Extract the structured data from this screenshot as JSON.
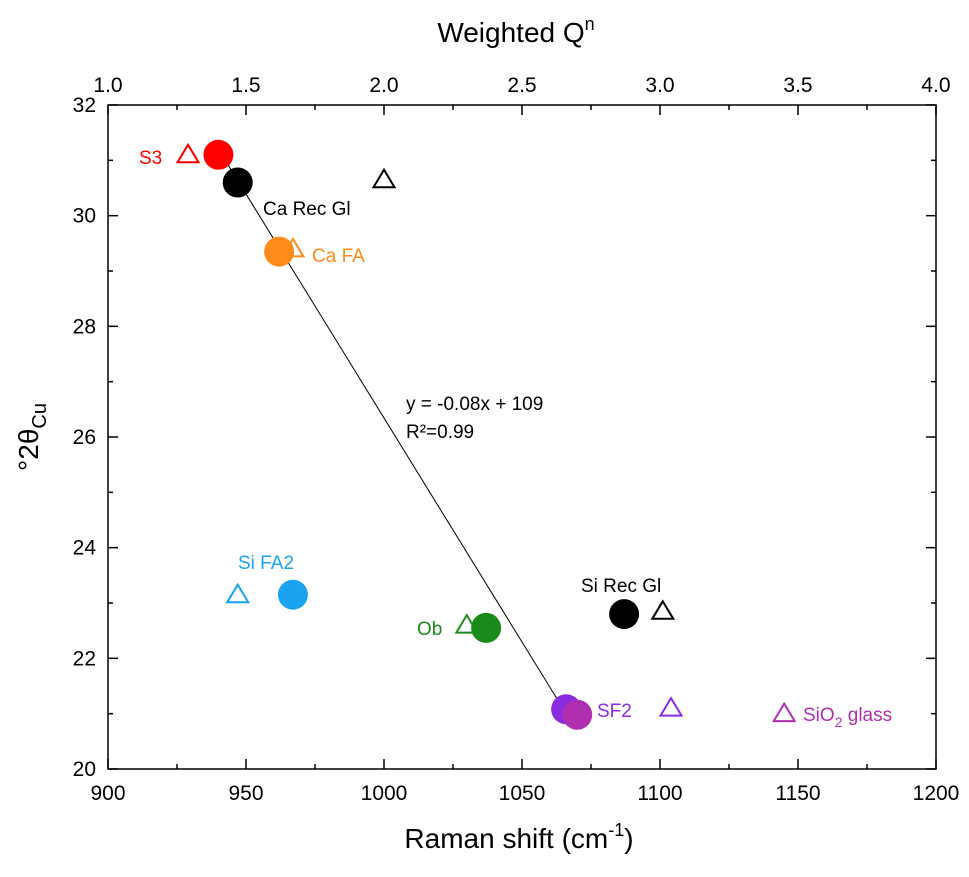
{
  "chart_data": {
    "type": "scatter",
    "xlabel": "Raman shift (cm",
    "xlabel_sup": "-1",
    "xlabel_end": ")",
    "ylabel": "°2θ",
    "ylabel_sub": "Cu",
    "x2label": "Weighted Q",
    "x2label_sup": "n",
    "xlim": [
      900,
      1200
    ],
    "ylim": [
      20,
      32
    ],
    "x2lim": [
      1.0,
      4.0
    ],
    "xticks": [
      "900",
      "950",
      "1000",
      "1050",
      "1100",
      "1150",
      "1200"
    ],
    "yticks": [
      "20",
      "22",
      "24",
      "26",
      "28",
      "30",
      "32"
    ],
    "x2ticks": [
      "1.0",
      "1.5",
      "2.0",
      "2.5",
      "3.0",
      "3.5",
      "4.0"
    ],
    "grid": false,
    "series": [
      {
        "marker": "circle",
        "points": [
          {
            "x": 940,
            "y": 31.1,
            "color": "#ff0000"
          },
          {
            "x": 947,
            "y": 30.6,
            "color": "#000000"
          },
          {
            "x": 962,
            "y": 29.35,
            "color": "#ff8c1a"
          },
          {
            "x": 967,
            "y": 23.15,
            "color": "#1aa3ef"
          },
          {
            "x": 1037,
            "y": 22.55,
            "color": "#1a8a1a"
          },
          {
            "x": 1066,
            "y": 21.08,
            "color": "#8a2be2"
          },
          {
            "x": 1070,
            "y": 20.98,
            "color": "#b02fb0"
          },
          {
            "x": 1087,
            "y": 22.8,
            "color": "#000000"
          }
        ]
      },
      {
        "marker": "triangle",
        "axis": "top",
        "points": [
          {
            "q": 1.29,
            "y": 31.1,
            "color": "#ff0000"
          },
          {
            "q": 2.0,
            "y": 30.65,
            "color": "#000000"
          },
          {
            "q": 1.67,
            "y": 29.4,
            "color": "#ff8c1a"
          },
          {
            "q": 1.47,
            "y": 23.15,
            "color": "#1aa3ef"
          },
          {
            "q": 2.3,
            "y": 22.6,
            "color": "#1a8a1a"
          },
          {
            "q": 3.01,
            "y": 22.85,
            "color": "#000000"
          },
          {
            "q": 3.04,
            "y": 21.1,
            "color": "#8a2be2"
          },
          {
            "q": 3.45,
            "y": 21.0,
            "color": "#b02fb0"
          }
        ]
      }
    ],
    "fit_line": {
      "x1": 941,
      "y1": 31.12,
      "x2": 1066,
      "y2": 21.0
    },
    "equation": "y = -0.08x + 109",
    "r_squared": "R²=0.99",
    "annotations": [
      {
        "text": "S3",
        "color": "#ff0000"
      },
      {
        "text": "Ca Rec Gl",
        "color": "#000000"
      },
      {
        "text": "Ca FA",
        "color": "#ff8c1a"
      },
      {
        "text": "Si FA2",
        "color": "#1aa3ef"
      },
      {
        "text": "Ob",
        "color": "#1a8a1a"
      },
      {
        "text": "SF2",
        "color": "#8a2be2"
      },
      {
        "text": "Si Rec Gl",
        "color": "#000000"
      },
      {
        "text": "SiO",
        "sub": "2",
        "end": " glass",
        "color": "#b02fb0"
      }
    ]
  }
}
